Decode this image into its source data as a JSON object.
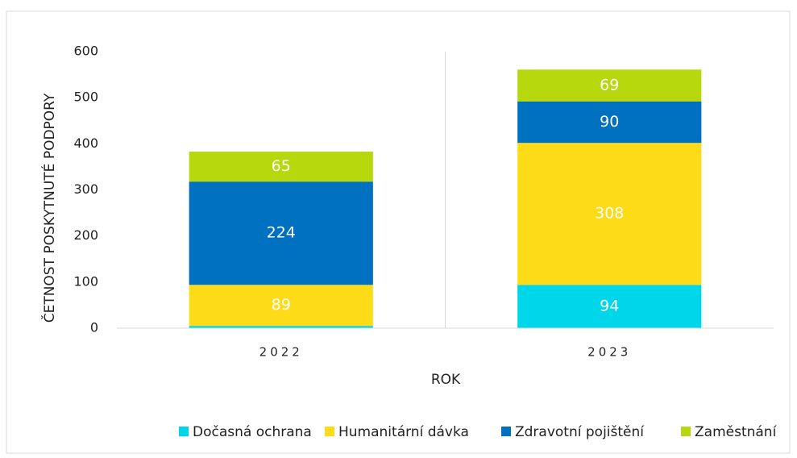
{
  "chart_data": {
    "type": "stacked_bar",
    "categories": [
      "2022",
      "2023"
    ],
    "series": [
      {
        "name": "Dočasná ochrana",
        "color": "#00d6ea",
        "values": [
          5,
          94
        ],
        "value_labels": [
          null,
          "94"
        ]
      },
      {
        "name": "Humanitární dávka",
        "color": "#fddb16",
        "values": [
          89,
          308
        ],
        "value_labels": [
          "89",
          "308"
        ]
      },
      {
        "name": "Zdravotní pojištění",
        "color": "#0070c0",
        "values": [
          224,
          90
        ],
        "value_labels": [
          "224",
          "90"
        ]
      },
      {
        "name": "Zaměstnání",
        "color": "#b6d80c",
        "values": [
          65,
          69
        ],
        "value_labels": [
          "65",
          "69"
        ]
      }
    ],
    "xlabel": "ROK",
    "ylabel": "ČETNOST POSKYTNUTÉ PODPORY",
    "ylim": [
      0,
      600
    ],
    "yticks": [
      0,
      100,
      200,
      300,
      400,
      500,
      600
    ],
    "legend": "bottom"
  }
}
